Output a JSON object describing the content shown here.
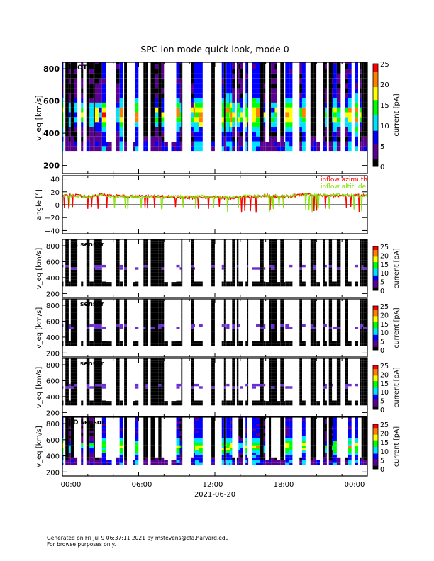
{
  "title": "SPC ion mode quick look, mode 0",
  "footer": {
    "line1": "Generated on Fri Jul  9 06:37:11 2021 by mstevens@cfa.harvard.edu",
    "line2": "For browse purposes only."
  },
  "colors": {
    "azimuth": "#ff0000",
    "altitude": "#80e000",
    "colormap": [
      "#000000",
      "#5a0090",
      "#0000ff",
      "#00e0ff",
      "#00ff00",
      "#ffff00",
      "#ff8000",
      "#ff0000"
    ]
  },
  "chart_data": [
    {
      "type": "heatmap",
      "panel_label": "TOTAL",
      "ylabel": "v_eq [km/s]",
      "ylim": [
        150,
        840
      ],
      "yticks": [
        "200",
        "400",
        "600",
        "800"
      ],
      "colorbar": {
        "label": "current [pA]",
        "range": [
          0,
          25
        ],
        "ticks": [
          "0",
          "5",
          "10",
          "15",
          "20",
          "25"
        ]
      },
      "intensity_peak_velocity_range": [
        430,
        580
      ],
      "data_velocity_range": [
        290,
        880
      ]
    },
    {
      "type": "line",
      "ylabel": "angle [°]",
      "ylim": [
        -45,
        45
      ],
      "yticks": [
        "−40",
        "−20",
        "0",
        "20",
        "40"
      ],
      "reference_line": 0,
      "legend": "top-right",
      "x_hours": [
        0,
        1,
        2,
        3,
        4,
        5,
        6,
        7,
        8,
        9,
        10,
        11,
        12,
        13,
        14,
        15,
        16,
        17,
        18,
        19,
        20,
        21,
        22,
        23,
        24
      ],
      "series": [
        {
          "name": "inflow azimuth",
          "values": [
            14,
            15,
            12,
            16,
            14,
            13,
            13,
            14,
            12,
            12,
            11,
            12,
            12,
            10,
            12,
            12,
            14,
            12,
            13,
            16,
            15,
            14,
            14,
            15,
            14
          ]
        },
        {
          "name": "inflow altitude",
          "values": [
            14,
            14,
            12,
            15,
            13,
            13,
            12,
            13,
            12,
            13,
            12,
            13,
            12,
            11,
            13,
            13,
            14,
            13,
            14,
            15,
            15,
            15,
            15,
            14,
            14
          ]
        }
      ]
    },
    {
      "type": "heatmap",
      "panel_label": "A sensor",
      "ylabel": "v_eq [km/s]",
      "ylim": [
        150,
        880
      ],
      "yticks": [
        "200",
        "400",
        "600",
        "800"
      ],
      "colorbar": {
        "label": "current [pA]",
        "range": [
          0,
          25
        ],
        "ticks": [
          "0",
          "5",
          "10",
          "15",
          "20",
          "25"
        ]
      }
    },
    {
      "type": "heatmap",
      "panel_label": "B sensor",
      "ylabel": "v_eq [km/s]",
      "ylim": [
        150,
        880
      ],
      "yticks": [
        "200",
        "400",
        "600",
        "800"
      ],
      "colorbar": {
        "label": "current [pA]",
        "range": [
          0,
          25
        ],
        "ticks": [
          "0",
          "5",
          "10",
          "15",
          "20",
          "25"
        ]
      }
    },
    {
      "type": "heatmap",
      "panel_label": "C sensor",
      "ylabel": "v_eq [km/s]",
      "ylim": [
        150,
        880
      ],
      "yticks": [
        "200",
        "400",
        "600",
        "800"
      ],
      "colorbar": {
        "label": "current [pA]",
        "range": [
          0,
          25
        ],
        "ticks": [
          "0",
          "5",
          "10",
          "15",
          "20",
          "25"
        ]
      }
    },
    {
      "type": "heatmap",
      "panel_label": "D sensor",
      "ylabel": "v_eq [km/s]",
      "ylim": [
        150,
        880
      ],
      "yticks": [
        "200",
        "400",
        "600",
        "800"
      ],
      "colorbar": {
        "label": "current [pA]",
        "range": [
          0,
          25
        ],
        "ticks": [
          "0",
          "5",
          "10",
          "15",
          "20",
          "25"
        ]
      }
    }
  ],
  "xaxis": {
    "ticks": [
      "00:00",
      "06:00",
      "12:00",
      "18:00",
      "00:00"
    ],
    "tick_hours": [
      0,
      6,
      12,
      18,
      24
    ],
    "date": "2021-06-20"
  }
}
